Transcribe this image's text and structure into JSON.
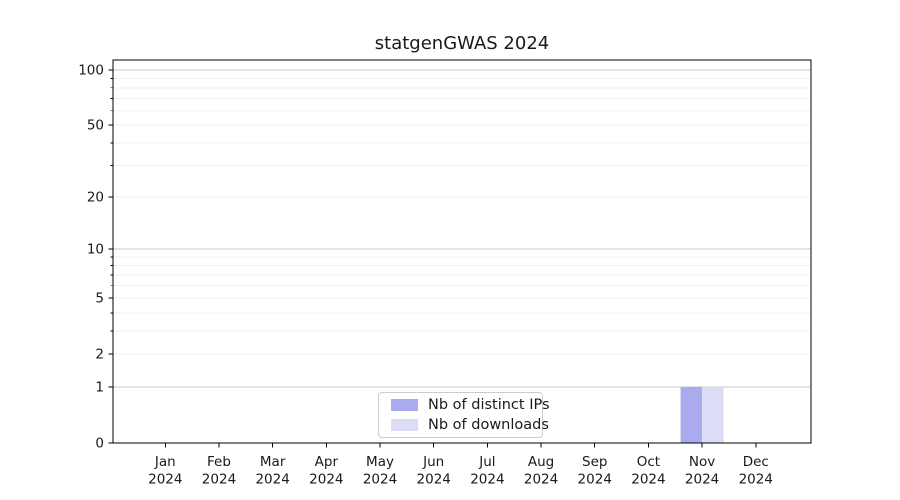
{
  "title": "statgenGWAS 2024",
  "colors": {
    "bar_distinct_ips": "#aaaaee",
    "bar_downloads": "#dcdcf6",
    "grid_major": "#c8c8c8",
    "grid_minor": "#f0f0f0",
    "spine": "#000000",
    "tick_text": "#1a1a1a",
    "legend_border": "#cccccc",
    "background": "#ffffff"
  },
  "chart_data": {
    "type": "bar",
    "title": "statgenGWAS 2024",
    "categories": [
      "Jan 2024",
      "Feb 2024",
      "Mar 2024",
      "Apr 2024",
      "May 2024",
      "Jun 2024",
      "Jul 2024",
      "Aug 2024",
      "Sep 2024",
      "Oct 2024",
      "Nov 2024",
      "Dec 2024"
    ],
    "series": [
      {
        "name": "Nb of distinct IPs",
        "color": "#aaaaee",
        "values": [
          0,
          0,
          0,
          0,
          0,
          0,
          0,
          0,
          0,
          0,
          1,
          0
        ]
      },
      {
        "name": "Nb of downloads",
        "color": "#dcdcf6",
        "values": [
          0,
          0,
          0,
          0,
          0,
          0,
          0,
          0,
          0,
          0,
          1,
          0
        ]
      }
    ],
    "xlabel": "",
    "ylabel": "",
    "y_scale": "log1p",
    "y_ticks": [
      100,
      50,
      20,
      10,
      5,
      2,
      1,
      0
    ],
    "y_minor_ticks": [
      2,
      3,
      4,
      5,
      6,
      7,
      8,
      9,
      20,
      30,
      40,
      50,
      60,
      70,
      80,
      90
    ],
    "y_major_gridlines": [
      1,
      10,
      100
    ],
    "ylim": [
      0,
      113
    ],
    "grid": true,
    "legend_position": "lower center"
  },
  "legend": {
    "items": [
      {
        "label": "Nb of distinct IPs",
        "color": "#aaaaee"
      },
      {
        "label": "Nb of downloads",
        "color": "#dcdcf6"
      }
    ]
  }
}
